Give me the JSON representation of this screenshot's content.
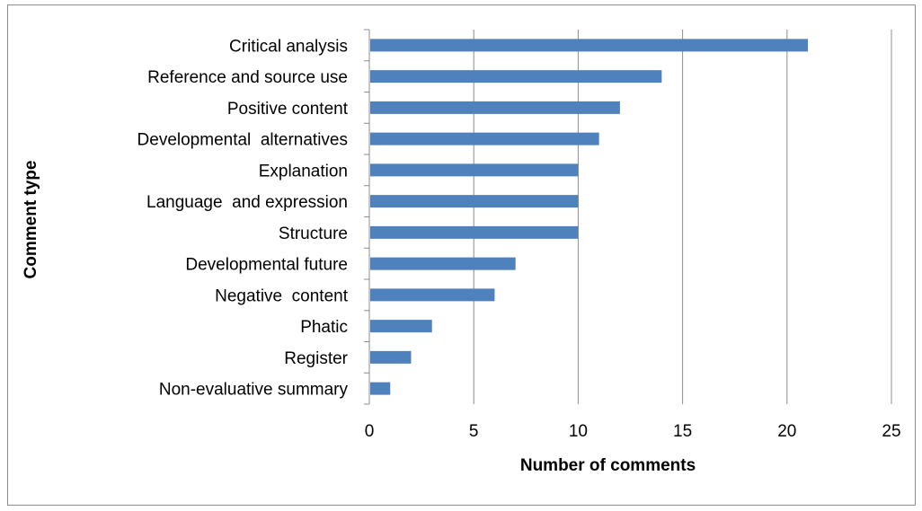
{
  "chart_data": {
    "type": "bar",
    "orientation": "horizontal",
    "title": "",
    "xlabel": "Number of comments",
    "ylabel": "Comment type",
    "xlim": [
      0,
      25
    ],
    "x_ticks": [
      0,
      5,
      10,
      15,
      20,
      25
    ],
    "grid": "vertical major gridlines",
    "legend": "none",
    "bar_color": "#4F81BD",
    "categories": [
      "Critical analysis",
      "Reference and source use",
      "Positive content",
      "Developmental  alternatives",
      "Explanation",
      "Language  and expression",
      "Structure",
      "Developmental future",
      "Negative  content",
      "Phatic",
      "Register",
      "Non-evaluative summary"
    ],
    "values": [
      21,
      14,
      12,
      11,
      10,
      10,
      10,
      7,
      6,
      3,
      2,
      1
    ]
  }
}
